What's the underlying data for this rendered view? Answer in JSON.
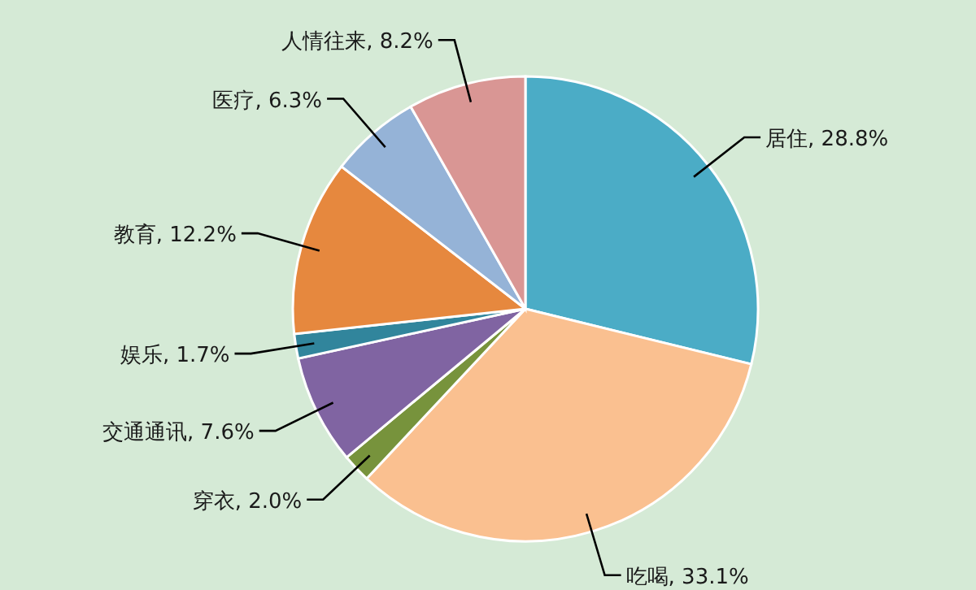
{
  "chart_data": {
    "type": "pie",
    "categories": [
      "居住",
      "吃喝",
      "穿衣",
      "交通通讯",
      "娱乐",
      "教育",
      "医疗",
      "人情往来"
    ],
    "values": [
      28.8,
      33.1,
      2.0,
      7.6,
      1.7,
      12.2,
      6.3,
      8.2
    ],
    "value_labels": [
      "28.8%",
      "33.1%",
      "2.0%",
      "7.6%",
      "1.7%",
      "12.2%",
      "6.3%",
      "8.2%"
    ],
    "colors": [
      "#4bacc6",
      "#fac090",
      "#77933c",
      "#8064a2",
      "#31859c",
      "#e6883e",
      "#95b3d7",
      "#d99694"
    ]
  }
}
